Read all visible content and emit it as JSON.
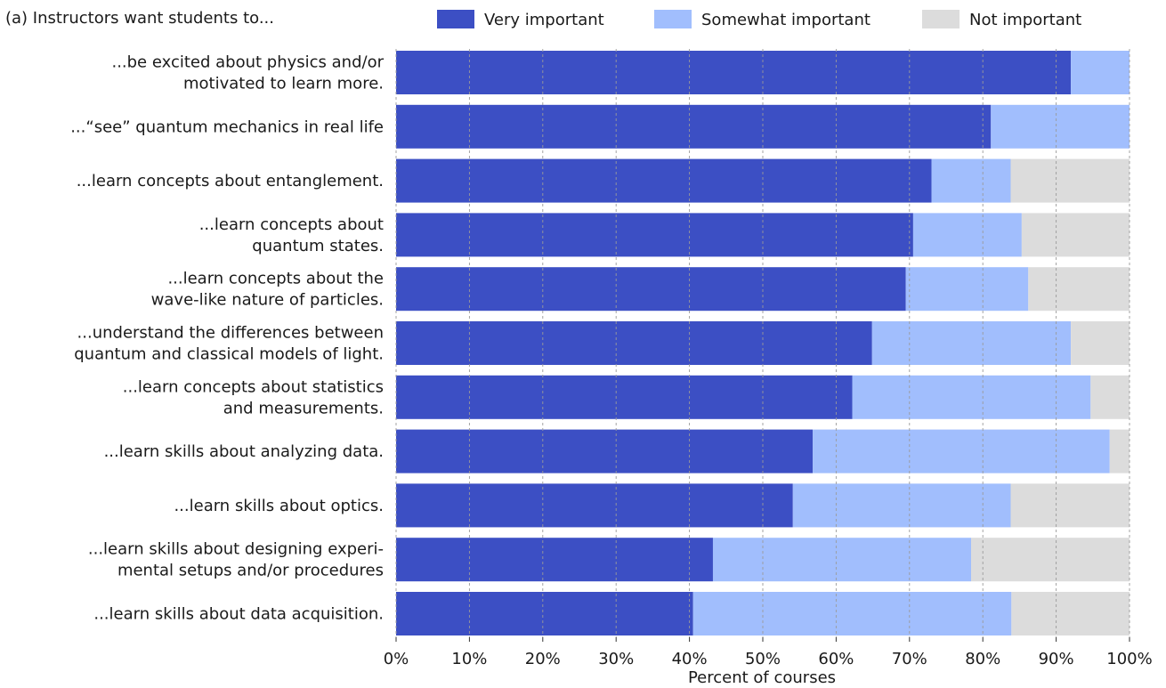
{
  "chart_data": {
    "type": "bar",
    "orientation": "horizontal",
    "stacked": true,
    "title": "(a)  Instructors want students to...",
    "xlabel": "Percent of courses",
    "xlim": [
      0,
      100
    ],
    "xticks": [
      "0%",
      "10%",
      "20%",
      "30%",
      "40%",
      "50%",
      "60%",
      "70%",
      "80%",
      "90%",
      "100%"
    ],
    "grid": "vertical dashed",
    "legend_position": "top",
    "categories": [
      [
        "...be excited about physics and/or",
        "motivated to learn more."
      ],
      [
        "...“see” quantum mechanics in real life"
      ],
      [
        "...learn concepts about entanglement."
      ],
      [
        "...learn concepts about",
        "quantum states."
      ],
      [
        "...learn concepts about the",
        "wave-like nature of particles."
      ],
      [
        "...understand the differences between",
        "quantum and classical models of light."
      ],
      [
        "...learn concepts about statistics",
        "and measurements."
      ],
      [
        "...learn skills about analyzing data."
      ],
      [
        "...learn skills about optics."
      ],
      [
        "...learn skills about designing experi-",
        "mental setups and/or procedures"
      ],
      [
        "...learn skills about data acquisition."
      ]
    ],
    "series": [
      {
        "name": "Very important",
        "color": "#3c4fc4",
        "values": [
          92,
          81.1,
          73,
          70.5,
          69.5,
          64.9,
          62.2,
          56.8,
          54.1,
          43.2,
          40.5
        ]
      },
      {
        "name": "Somewhat important",
        "color": "#a1befd",
        "values": [
          8,
          18.9,
          10.8,
          14.8,
          16.7,
          27.1,
          32.5,
          40.5,
          29.7,
          35.2,
          43.4
        ]
      },
      {
        "name": "Not important",
        "color": "#dcdcdc",
        "values": [
          0,
          0,
          16.2,
          14.7,
          13.8,
          8,
          5.3,
          2.7,
          16.2,
          21.6,
          16.1
        ]
      }
    ]
  }
}
